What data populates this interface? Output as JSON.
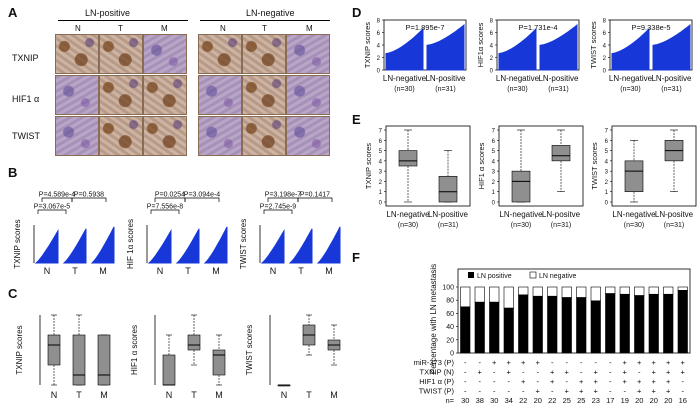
{
  "panels": {
    "A": "A",
    "B": "B",
    "C": "C",
    "D": "D",
    "E": "E",
    "F": "F"
  },
  "panel_a": {
    "group_pos": "LN-positive",
    "group_neg": "LN-negative",
    "cols": [
      "N",
      "T",
      "M",
      "N",
      "T",
      "M"
    ],
    "rows": [
      "TXNIP",
      "HIF1 α",
      "TWIST"
    ]
  },
  "panel_b": [
    {
      "ylabel": "TXNIP scores",
      "p_top1": "P=4.589e-4",
      "p_top2": "P=0.5938",
      "p_low": "P=3.067e-5",
      "x": [
        "N",
        "T",
        "M"
      ]
    },
    {
      "ylabel": "HIF 1α scores",
      "p_top1": "P=0.0254",
      "p_top2": "P=3.094e-4",
      "p_low": "P=7.556e-8",
      "x": [
        "N",
        "T",
        "M"
      ]
    },
    {
      "ylabel": "TWIST scores",
      "p_top1": "P=3.198e-7",
      "p_top2": "P=0.1417",
      "p_low": "P=2.745e-9",
      "x": [
        "N",
        "T",
        "M"
      ]
    }
  ],
  "panel_c": [
    {
      "ylabel": "TXNIP scores",
      "x": [
        "N",
        "T",
        "M"
      ],
      "ticks": [
        "0",
        "1",
        "2",
        "3",
        "4",
        "5",
        "6",
        "7"
      ]
    },
    {
      "ylabel": "HIF1 α scores",
      "x": [
        "N",
        "T",
        "M"
      ],
      "ticks": [
        "0",
        "1",
        "2",
        "3",
        "4",
        "5",
        "6",
        "7"
      ]
    },
    {
      "ylabel": "TWIST scores",
      "x": [
        "N",
        "T",
        "M"
      ],
      "ticks": [
        "0",
        "1",
        "2",
        "3",
        "4",
        "5",
        "6",
        "7"
      ]
    }
  ],
  "panel_d": [
    {
      "ylabel": "TXNIP scores",
      "p": "P=1.895e-7",
      "x1": "LN-negative",
      "x2": "LN-positive",
      "n1": "(n=30)",
      "n2": "(n=31)",
      "ticks": [
        "0",
        "2",
        "4",
        "6",
        "8"
      ]
    },
    {
      "ylabel": "HIF1α scores",
      "p": "P=1.731e-4",
      "x1": "LN-negative",
      "x2": "LN-positive",
      "n1": "(n=30)",
      "n2": "(n=31)",
      "ticks": [
        "0",
        "2",
        "4",
        "6",
        "8"
      ]
    },
    {
      "ylabel": "TWIST scores",
      "p": "P=9.338e-5",
      "x1": "LN-negative",
      "x2": "LN-positive",
      "n1": "(n=30)",
      "n2": "(n=31)",
      "ticks": [
        "0",
        "2",
        "4",
        "6",
        "8"
      ]
    }
  ],
  "panel_e": [
    {
      "ylabel": "TXNIP scores",
      "x1": "LN-negative",
      "x2": "LN-positive",
      "n1": "(n=30)",
      "n2": "(n=31)",
      "ticks": [
        "0",
        "1",
        "2",
        "3",
        "4",
        "5",
        "6",
        "7"
      ]
    },
    {
      "ylabel": "HIF1 α scores",
      "x1": "LN-negative",
      "x2": "LN-positve",
      "n1": "(n=30)",
      "n2": "(n=31)",
      "ticks": [
        "0",
        "1",
        "2",
        "3",
        "4",
        "5",
        "6",
        "7"
      ]
    },
    {
      "ylabel": "TWIST scores",
      "x1": "LN-negative",
      "x2": "LN-positve",
      "n1": "(n=30)",
      "n2": "(n=31)",
      "ticks": [
        "0",
        "1",
        "2",
        "3",
        "4",
        "5",
        "6",
        "7"
      ]
    }
  ],
  "panel_f": {
    "legend_pos": "LN positive",
    "legend_neg": "LN negative",
    "ylabel": "Percentage with LN metastasis",
    "yticks": [
      "0",
      "20",
      "40",
      "60",
      "80",
      "100"
    ],
    "row_labels": [
      "miR-373 (P)",
      "TXNIP (N)",
      "HIF1 α (P)",
      "TWIST (P)",
      "n="
    ],
    "signs": [
      [
        "-",
        "-",
        "+",
        "+",
        "+",
        "+",
        "-",
        "-",
        "-",
        "-",
        "-",
        "+",
        "+",
        "+",
        "+",
        "+"
      ],
      [
        "-",
        "+",
        "-",
        "+",
        "-",
        "-",
        "+",
        "+",
        "-",
        "+",
        "-",
        "+",
        "-",
        "+",
        "+",
        "+"
      ],
      [
        "-",
        "-",
        "-",
        "-",
        "+",
        "-",
        "+",
        "-",
        "+",
        "+",
        "-",
        "+",
        "+",
        "+",
        "+",
        "-"
      ],
      [
        "-",
        "-",
        "-",
        "-",
        "-",
        "+",
        "-",
        "+",
        "+",
        "+",
        "-",
        "-",
        "+",
        "+",
        "+",
        "-"
      ]
    ],
    "n": [
      "30",
      "38",
      "30",
      "34",
      "22",
      "20",
      "22",
      "25",
      "25",
      "23",
      "17",
      "19",
      "20",
      "20",
      "20",
      "16"
    ],
    "values": [
      70,
      77,
      77,
      68,
      88,
      86,
      86,
      84,
      84,
      79,
      90,
      89,
      87,
      89,
      89,
      95
    ]
  },
  "colors": {
    "bar": "#1737d8",
    "boxfill": "#8f8f8f",
    "black": "#000000"
  }
}
